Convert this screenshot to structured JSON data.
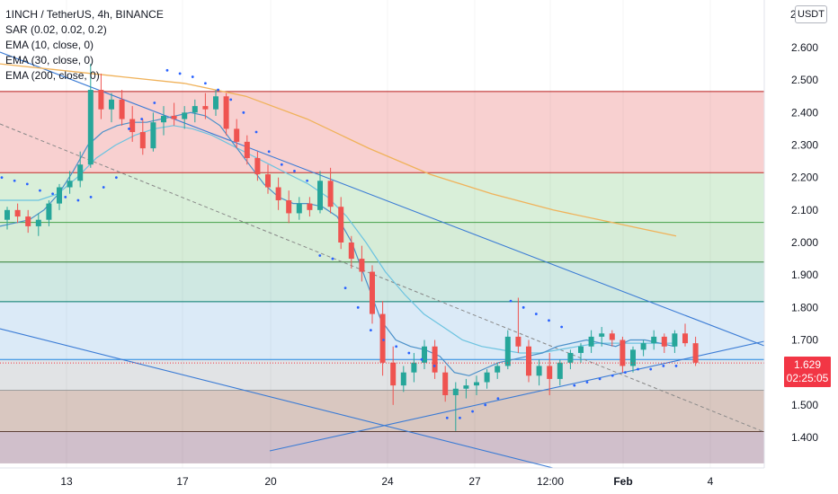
{
  "legend": {
    "symbol": "1INCH / TetherUS, 4h, BINANCE",
    "sar": "SAR (0.02, 0.02, 0.2)",
    "ema10": "EMA (10, close, 0)",
    "ema30": "EMA (30, close, 0)",
    "ema200": "EMA (200, close, 0)"
  },
  "price_axis": {
    "unit": "USDT",
    "top_label": "2",
    "last_price": "1.629",
    "countdown": "02:25:05"
  },
  "colors": {
    "up": "#26a69a",
    "down": "#ef5350",
    "ema10": "#4a90c9",
    "ema30": "#6cc3e0",
    "ema200": "#f0b25a",
    "sar": "#2962ff",
    "trendline": "#3a7bd5",
    "dashed": "#888888",
    "last_price": "#f23645"
  },
  "chart_data": {
    "type": "candlestick",
    "title": "1INCH / TetherUS, 4h, BINANCE",
    "ylim": [
      1.38,
      2.72
    ],
    "y_ticks": [
      "2.600",
      "2.500",
      "2.400",
      "2.300",
      "2.200",
      "2.100",
      "2.000",
      "1.900",
      "1.800",
      "1.700",
      "1.500",
      "1.400"
    ],
    "x_ticks": [
      "13",
      "17",
      "20",
      "24",
      "27",
      "12:00",
      "Feb",
      "4"
    ],
    "bar_interval": "4h",
    "last_price": 1.629,
    "zones": [
      {
        "from": 2.465,
        "to": 2.215,
        "color": "#f8d0d0"
      },
      {
        "from": 2.215,
        "to": 2.062,
        "color": "#d9efd9"
      },
      {
        "from": 2.062,
        "to": 1.94,
        "color": "#d6ecd7"
      },
      {
        "from": 1.94,
        "to": 1.818,
        "color": "#cfe8e2"
      },
      {
        "from": 1.818,
        "to": 1.64,
        "color": "#dbeaf7"
      },
      {
        "from": 1.64,
        "to": 1.545,
        "color": "#e1e3e5"
      },
      {
        "from": 1.545,
        "to": 1.418,
        "color": "#d9c7c0"
      },
      {
        "from": 1.418,
        "to": 1.32,
        "color": "#d0bfcb"
      }
    ],
    "levels": [
      {
        "value": 2.465,
        "color": "#b71c1c"
      },
      {
        "value": 2.215,
        "color": "#c62828"
      },
      {
        "value": 2.062,
        "color": "#43a047"
      },
      {
        "value": 1.94,
        "color": "#2e7d32"
      },
      {
        "value": 1.818,
        "color": "#00796b"
      },
      {
        "value": 1.64,
        "color": "#1e88e5"
      },
      {
        "value": 1.545,
        "color": "#9e9e9e"
      },
      {
        "value": 1.418,
        "color": "#5d4037"
      }
    ],
    "ohlc": [
      [
        2.07,
        2.11,
        2.04,
        2.1
      ],
      [
        2.1,
        2.12,
        2.06,
        2.08
      ],
      [
        2.08,
        2.1,
        2.03,
        2.05
      ],
      [
        2.05,
        2.09,
        2.02,
        2.07
      ],
      [
        2.07,
        2.13,
        2.05,
        2.12
      ],
      [
        2.12,
        2.18,
        2.1,
        2.17
      ],
      [
        2.17,
        2.22,
        2.15,
        2.19
      ],
      [
        2.19,
        2.28,
        2.17,
        2.24
      ],
      [
        2.24,
        2.55,
        2.23,
        2.47
      ],
      [
        2.47,
        2.52,
        2.38,
        2.41
      ],
      [
        2.41,
        2.46,
        2.37,
        2.44
      ],
      [
        2.44,
        2.47,
        2.36,
        2.38
      ],
      [
        2.38,
        2.42,
        2.31,
        2.34
      ],
      [
        2.34,
        2.38,
        2.27,
        2.29
      ],
      [
        2.29,
        2.4,
        2.28,
        2.37
      ],
      [
        2.37,
        2.42,
        2.33,
        2.39
      ],
      [
        2.39,
        2.43,
        2.36,
        2.38
      ],
      [
        2.38,
        2.42,
        2.35,
        2.4
      ],
      [
        2.4,
        2.44,
        2.37,
        2.42
      ],
      [
        2.42,
        2.46,
        2.38,
        2.41
      ],
      [
        2.41,
        2.47,
        2.39,
        2.45
      ],
      [
        2.45,
        2.46,
        2.33,
        2.35
      ],
      [
        2.35,
        2.38,
        2.29,
        2.31
      ],
      [
        2.31,
        2.33,
        2.24,
        2.26
      ],
      [
        2.26,
        2.28,
        2.19,
        2.21
      ],
      [
        2.21,
        2.24,
        2.15,
        2.17
      ],
      [
        2.17,
        2.2,
        2.1,
        2.13
      ],
      [
        2.13,
        2.16,
        2.06,
        2.09
      ],
      [
        2.09,
        2.14,
        2.07,
        2.12
      ],
      [
        2.12,
        2.14,
        2.08,
        2.1
      ],
      [
        2.1,
        2.22,
        2.09,
        2.19
      ],
      [
        2.19,
        2.23,
        2.09,
        2.11
      ],
      [
        2.11,
        2.14,
        1.98,
        2.0
      ],
      [
        2.0,
        2.02,
        1.92,
        1.95
      ],
      [
        1.95,
        1.99,
        1.88,
        1.91
      ],
      [
        1.91,
        1.93,
        1.75,
        1.78
      ],
      [
        1.78,
        1.82,
        1.59,
        1.63
      ],
      [
        1.63,
        1.68,
        1.5,
        1.56
      ],
      [
        1.56,
        1.62,
        1.54,
        1.6
      ],
      [
        1.6,
        1.66,
        1.57,
        1.63
      ],
      [
        1.63,
        1.7,
        1.61,
        1.68
      ],
      [
        1.68,
        1.7,
        1.58,
        1.6
      ],
      [
        1.6,
        1.62,
        1.51,
        1.53
      ],
      [
        1.53,
        1.57,
        1.42,
        1.55
      ],
      [
        1.55,
        1.58,
        1.52,
        1.56
      ],
      [
        1.56,
        1.59,
        1.53,
        1.57
      ],
      [
        1.57,
        1.61,
        1.55,
        1.6
      ],
      [
        1.6,
        1.63,
        1.58,
        1.62
      ],
      [
        1.62,
        1.73,
        1.61,
        1.71
      ],
      [
        1.71,
        1.83,
        1.66,
        1.68
      ],
      [
        1.68,
        1.7,
        1.57,
        1.59
      ],
      [
        1.59,
        1.64,
        1.56,
        1.62
      ],
      [
        1.62,
        1.66,
        1.53,
        1.58
      ],
      [
        1.58,
        1.64,
        1.56,
        1.63
      ],
      [
        1.63,
        1.67,
        1.61,
        1.66
      ],
      [
        1.66,
        1.69,
        1.63,
        1.68
      ],
      [
        1.68,
        1.73,
        1.66,
        1.71
      ],
      [
        1.71,
        1.74,
        1.68,
        1.72
      ],
      [
        1.72,
        1.73,
        1.68,
        1.7
      ],
      [
        1.7,
        1.71,
        1.6,
        1.62
      ],
      [
        1.62,
        1.68,
        1.6,
        1.67
      ],
      [
        1.67,
        1.7,
        1.65,
        1.69
      ],
      [
        1.69,
        1.73,
        1.67,
        1.71
      ],
      [
        1.71,
        1.72,
        1.66,
        1.68
      ],
      [
        1.68,
        1.73,
        1.66,
        1.72
      ],
      [
        1.72,
        1.75,
        1.68,
        1.69
      ],
      [
        1.69,
        1.71,
        1.62,
        1.63
      ]
    ],
    "ema10": [
      2.05,
      2.06,
      2.07,
      2.1,
      2.15,
      2.22,
      2.3,
      2.34,
      2.36,
      2.37,
      2.37,
      2.38,
      2.39,
      2.4,
      2.39,
      2.36,
      2.3,
      2.24,
      2.18,
      2.14,
      2.12,
      2.12,
      2.11,
      2.08,
      2.0,
      1.88,
      1.76,
      1.7,
      1.68,
      1.67,
      1.65,
      1.6,
      1.59,
      1.61,
      1.63,
      1.64,
      1.65,
      1.66,
      1.68,
      1.69,
      1.7,
      1.69,
      1.68,
      1.7,
      1.7,
      1.69,
      1.68
    ],
    "ema30": [
      2.13,
      2.13,
      2.13,
      2.15,
      2.2,
      2.26,
      2.3,
      2.33,
      2.35,
      2.36,
      2.35,
      2.33,
      2.3,
      2.27,
      2.24,
      2.21,
      2.18,
      2.14,
      2.08,
      2.0,
      1.91,
      1.84,
      1.78,
      1.74,
      1.7,
      1.68,
      1.67,
      1.66,
      1.66,
      1.67,
      1.68,
      1.69,
      1.69,
      1.69,
      1.69,
      1.69
    ],
    "ema200": [
      2.55,
      2.53,
      2.51,
      2.49,
      2.45,
      2.38,
      2.29,
      2.21,
      2.15,
      2.1,
      2.06,
      2.02
    ],
    "sar": [
      2.2,
      2.19,
      2.18,
      2.16,
      2.15,
      2.14,
      2.13,
      2.14,
      2.17,
      2.2,
      2.35,
      2.38,
      2.43,
      2.53,
      2.52,
      2.51,
      2.49,
      2.47,
      2.44,
      2.4,
      2.34,
      2.28,
      2.24,
      2.22,
      2.19,
      1.96,
      1.95,
      1.86,
      1.8,
      1.73,
      1.7,
      1.68,
      1.66,
      1.64,
      1.62,
      1.46,
      1.46,
      1.48,
      1.5,
      1.52,
      1.82,
      1.8,
      1.78,
      1.76,
      1.74,
      1.56,
      1.57,
      1.58,
      1.59,
      1.6,
      1.61,
      1.61,
      1.62,
      1.62
    ]
  }
}
